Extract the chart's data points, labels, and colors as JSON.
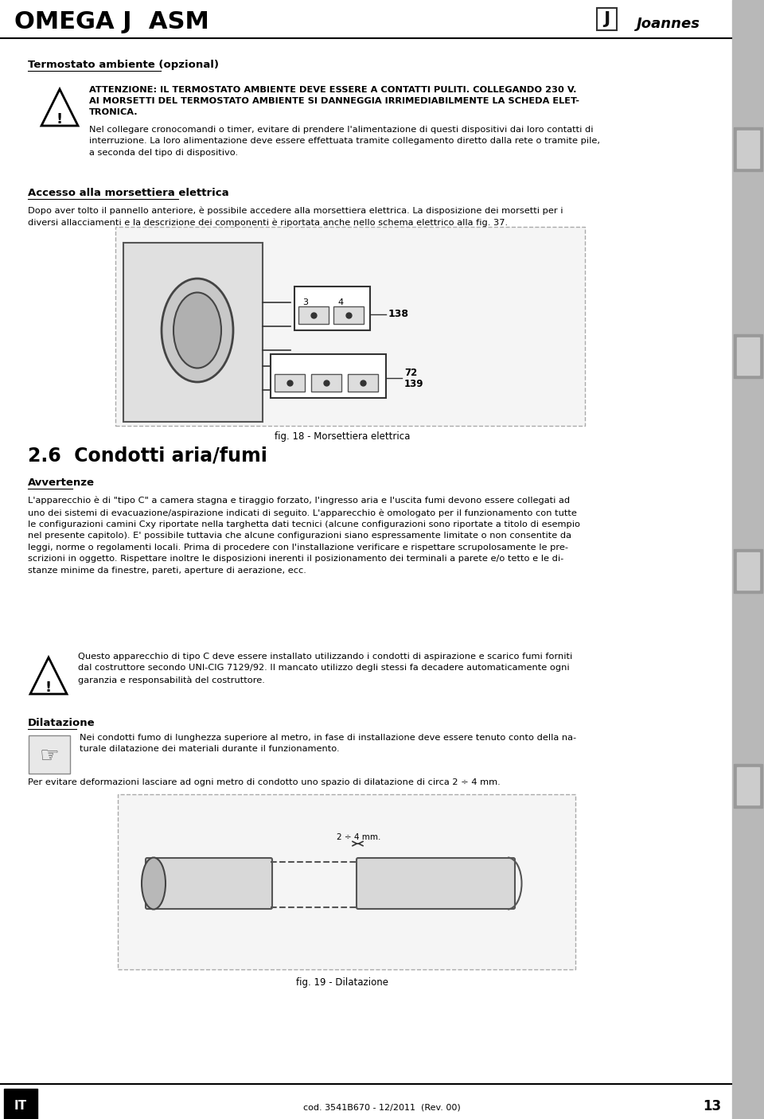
{
  "page_title": "OMEGA J  ASM",
  "brand": "Joannes",
  "bg_color": "#ffffff",
  "header_line_color": "#000000",
  "sidebar_color": "#c0c0c0",
  "footer_label": "IT",
  "footer_code": "cod. 3541B670 - 12/2011  (Rev. 00)",
  "footer_page": "13",
  "section1_title": "Termostato ambiente (opzional)",
  "warning1_line1": "ATTENZIONE: IL TERMOSTATO AMBIENTE DEVE ESSERE A CONTATTI PULITI. COLLEGANDO 230 V.",
  "warning1_line2": "AI MORSETTI DEL TERMOSTATO AMBIENTE SI DANNEGGIA IRRIMEDIABILMENTE LA SCHEDA ELET-",
  "warning1_line3": "TRONICA.",
  "warning1_note": "Nel collegare cronocomandi o timer, evitare di prendere l'alimentazione di questi dispositivi dai loro contatti di\ninterruzione. La loro alimentazione deve essere effettuata tramite collegamento diretto dalla rete o tramite pile,\na seconda del tipo di dispositivo.",
  "section2_title": "Accesso alla morsettiera elettrica",
  "section2_text": "Dopo aver tolto il pannello anteriore, è possibile accedere alla morsettiera elettrica. La disposizione dei morsetti per i\ndiversi allacciamenti e la descrizione dei componenti è riportata anche nello schema elettrico alla fig. 37.",
  "fig18_caption": "fig. 18 - Morsettiera elettrica",
  "section3_title": "2.6  Condotti aria/fumi",
  "section3_sub": "Avvertenze",
  "section3_text1": "L'apparecchio è di \"tipo C\" a camera stagna e tiraggio forzato, l'ingresso aria e l'uscita fumi devono essere collegati ad\nuno dei sistemi di evacuazione/aspirazione indicati di seguito. L'apparecchio è omologato per il funzionamento con tutte\nle configurazioni camini Cxy riportate nella targhetta dati tecnici (alcune configurazioni sono riportate a titolo di esempio\nnel presente capitolo). E' possibile tuttavia che alcune configurazioni siano espressamente limitate o non consentite da\nleggi, norme o regolamenti locali. Prima di procedere con l'installazione verificare e rispettare scrupolosamente le pre-\nscrizioni in oggetto. Rispettare inoltre le disposizioni inerenti il posizionamento dei terminali a parete e/o tetto e le di-\nstanze minime da finestre, pareti, aperture di aerazione, ecc.",
  "warning2": "Questo apparecchio di tipo C deve essere installato utilizzando i condotti di aspirazione e scarico fumi forniti\ndal costruttore secondo UNI-CIG 7129/92. Il mancato utilizzo degli stessi fa decadere automaticamente ogni\ngaranzia e responsabilità del costruttore.",
  "section4_title": "Dilatazione",
  "section4_text1": "Nei condotti fumo di lunghezza superiore al metro, in fase di installazione deve essere tenuto conto della na-\nturale dilatazione dei materiali durante il funzionamento.",
  "section4_text2": "Per evitare deformazioni lasciare ad ogni metro di condotto uno spazio di dilatazione di circa 2 ÷ 4 mm.",
  "fig19_caption": "fig. 19 - Dilatazione",
  "label_2_4mm": "2 ÷ 4 mm."
}
